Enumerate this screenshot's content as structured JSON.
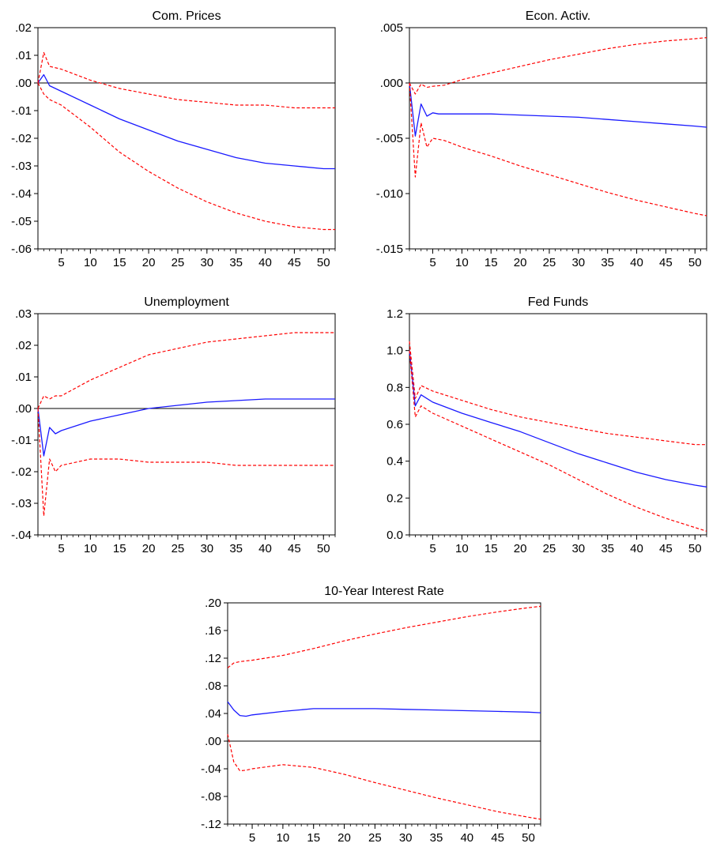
{
  "colors": {
    "estimate": "#1a1aff",
    "band": "#ff0000",
    "zero_line": "#000000",
    "frame": "#000000",
    "background": "#ffffff"
  },
  "legend": "none",
  "grid": false,
  "chart_data": [
    {
      "type": "line",
      "title": "Com. Prices",
      "xlabel": "",
      "ylabel": "",
      "xlim": [
        1,
        52
      ],
      "ylim": [
        -0.06,
        0.02
      ],
      "zero_line": 0,
      "x_ticks": [
        5,
        10,
        15,
        20,
        25,
        30,
        35,
        40,
        45,
        50
      ],
      "y_ticks": [
        {
          "v": 0.02,
          "label": ".02"
        },
        {
          "v": 0.01,
          "label": ".01"
        },
        {
          "v": 0.0,
          "label": ".00"
        },
        {
          "v": -0.01,
          "label": "-.01"
        },
        {
          "v": -0.02,
          "label": "-.02"
        },
        {
          "v": -0.03,
          "label": "-.03"
        },
        {
          "v": -0.04,
          "label": "-.04"
        },
        {
          "v": -0.05,
          "label": "-.05"
        },
        {
          "v": -0.06,
          "label": "-.06"
        }
      ],
      "series": [
        {
          "role": "estimate",
          "x": [
            1,
            2,
            3,
            5,
            10,
            15,
            20,
            25,
            30,
            35,
            40,
            45,
            50,
            52
          ],
          "y": [
            0.0,
            0.003,
            -0.001,
            -0.003,
            -0.008,
            -0.013,
            -0.017,
            -0.021,
            -0.024,
            -0.027,
            -0.029,
            -0.03,
            -0.031,
            -0.031
          ]
        },
        {
          "role": "upper",
          "x": [
            1,
            2,
            3,
            5,
            10,
            15,
            20,
            25,
            30,
            35,
            40,
            45,
            50,
            52
          ],
          "y": [
            0.0,
            0.011,
            0.006,
            0.005,
            0.001,
            -0.002,
            -0.004,
            -0.006,
            -0.007,
            -0.008,
            -0.008,
            -0.009,
            -0.009,
            -0.009
          ]
        },
        {
          "role": "lower",
          "x": [
            1,
            2,
            3,
            5,
            10,
            15,
            20,
            25,
            30,
            35,
            40,
            45,
            50,
            52
          ],
          "y": [
            0.0,
            -0.004,
            -0.006,
            -0.008,
            -0.016,
            -0.025,
            -0.032,
            -0.038,
            -0.043,
            -0.047,
            -0.05,
            -0.052,
            -0.053,
            -0.053
          ]
        }
      ]
    },
    {
      "type": "line",
      "title": "Econ. Activ.",
      "xlabel": "",
      "ylabel": "",
      "xlim": [
        1,
        52
      ],
      "ylim": [
        -0.015,
        0.005
      ],
      "zero_line": 0,
      "x_ticks": [
        5,
        10,
        15,
        20,
        25,
        30,
        35,
        40,
        45,
        50
      ],
      "y_ticks": [
        {
          "v": 0.005,
          "label": ".005"
        },
        {
          "v": 0.0,
          "label": ".000"
        },
        {
          "v": -0.005,
          "label": "-.005"
        },
        {
          "v": -0.01,
          "label": "-.010"
        },
        {
          "v": -0.015,
          "label": "-.015"
        }
      ],
      "series": [
        {
          "role": "estimate",
          "x": [
            1,
            2,
            3,
            4,
            5,
            6,
            10,
            15,
            20,
            25,
            30,
            35,
            40,
            45,
            50,
            52
          ],
          "y": [
            0.0,
            -0.0048,
            -0.0019,
            -0.003,
            -0.0027,
            -0.0028,
            -0.0028,
            -0.0028,
            -0.0029,
            -0.003,
            -0.0031,
            -0.0033,
            -0.0035,
            -0.0037,
            -0.0039,
            -0.004
          ]
        },
        {
          "role": "upper",
          "x": [
            1,
            2,
            3,
            4,
            5,
            7,
            10,
            15,
            20,
            25,
            30,
            35,
            40,
            45,
            50,
            52
          ],
          "y": [
            0.0,
            -0.001,
            -0.0001,
            -0.0004,
            -0.0003,
            -0.0002,
            0.0003,
            0.0009,
            0.0015,
            0.0021,
            0.0026,
            0.0031,
            0.0035,
            0.0038,
            0.004,
            0.0041
          ]
        },
        {
          "role": "lower",
          "x": [
            1,
            2,
            3,
            4,
            5,
            7,
            10,
            15,
            20,
            25,
            30,
            35,
            40,
            45,
            50,
            52
          ],
          "y": [
            0.0,
            -0.0085,
            -0.0036,
            -0.0058,
            -0.005,
            -0.0052,
            -0.0058,
            -0.0066,
            -0.0075,
            -0.0083,
            -0.0091,
            -0.0099,
            -0.0106,
            -0.0112,
            -0.0118,
            -0.012
          ]
        }
      ]
    },
    {
      "type": "line",
      "title": "Unemployment",
      "xlabel": "",
      "ylabel": "",
      "xlim": [
        1,
        52
      ],
      "ylim": [
        -0.04,
        0.03
      ],
      "zero_line": 0,
      "x_ticks": [
        5,
        10,
        15,
        20,
        25,
        30,
        35,
        40,
        45,
        50
      ],
      "y_ticks": [
        {
          "v": 0.03,
          "label": ".03"
        },
        {
          "v": 0.02,
          "label": ".02"
        },
        {
          "v": 0.01,
          "label": ".01"
        },
        {
          "v": 0.0,
          "label": ".00"
        },
        {
          "v": -0.01,
          "label": "-.01"
        },
        {
          "v": -0.02,
          "label": "-.02"
        },
        {
          "v": -0.03,
          "label": "-.03"
        },
        {
          "v": -0.04,
          "label": "-.04"
        }
      ],
      "series": [
        {
          "role": "estimate",
          "x": [
            1,
            2,
            3,
            4,
            5,
            10,
            15,
            20,
            25,
            30,
            35,
            40,
            45,
            50,
            52
          ],
          "y": [
            0.0,
            -0.015,
            -0.006,
            -0.008,
            -0.007,
            -0.004,
            -0.002,
            0.0,
            0.001,
            0.002,
            0.0025,
            0.003,
            0.003,
            0.003,
            0.003
          ]
        },
        {
          "role": "upper",
          "x": [
            1,
            2,
            3,
            4,
            5,
            10,
            15,
            20,
            25,
            30,
            35,
            40,
            45,
            50,
            52
          ],
          "y": [
            0.0,
            0.004,
            0.003,
            0.004,
            0.004,
            0.009,
            0.013,
            0.017,
            0.019,
            0.021,
            0.022,
            0.023,
            0.024,
            0.024,
            0.024
          ]
        },
        {
          "role": "lower",
          "x": [
            1,
            2,
            3,
            4,
            5,
            10,
            15,
            20,
            25,
            30,
            35,
            40,
            45,
            50,
            52
          ],
          "y": [
            0.0,
            -0.034,
            -0.016,
            -0.02,
            -0.018,
            -0.016,
            -0.016,
            -0.017,
            -0.017,
            -0.017,
            -0.018,
            -0.018,
            -0.018,
            -0.018,
            -0.018
          ]
        }
      ]
    },
    {
      "type": "line",
      "title": "Fed Funds",
      "xlabel": "",
      "ylabel": "",
      "xlim": [
        1,
        52
      ],
      "ylim": [
        0.0,
        1.2
      ],
      "zero_line": null,
      "x_ticks": [
        5,
        10,
        15,
        20,
        25,
        30,
        35,
        40,
        45,
        50
      ],
      "y_ticks": [
        {
          "v": 1.2,
          "label": "1.2"
        },
        {
          "v": 1.0,
          "label": "1.0"
        },
        {
          "v": 0.8,
          "label": "0.8"
        },
        {
          "v": 0.6,
          "label": "0.6"
        },
        {
          "v": 0.4,
          "label": "0.4"
        },
        {
          "v": 0.2,
          "label": "0.2"
        },
        {
          "v": 0.0,
          "label": "0.0"
        }
      ],
      "series": [
        {
          "role": "estimate",
          "x": [
            1,
            2,
            3,
            5,
            10,
            15,
            20,
            25,
            30,
            35,
            40,
            45,
            50,
            52
          ],
          "y": [
            1.0,
            0.7,
            0.76,
            0.72,
            0.66,
            0.61,
            0.56,
            0.5,
            0.44,
            0.39,
            0.34,
            0.3,
            0.27,
            0.26
          ]
        },
        {
          "role": "upper",
          "x": [
            1,
            2,
            3,
            5,
            10,
            15,
            20,
            25,
            30,
            35,
            40,
            45,
            50,
            52
          ],
          "y": [
            1.05,
            0.74,
            0.81,
            0.78,
            0.73,
            0.68,
            0.64,
            0.61,
            0.58,
            0.55,
            0.53,
            0.51,
            0.49,
            0.49
          ]
        },
        {
          "role": "lower",
          "x": [
            1,
            2,
            3,
            5,
            10,
            15,
            20,
            25,
            30,
            35,
            40,
            45,
            50,
            52
          ],
          "y": [
            1.0,
            0.64,
            0.7,
            0.66,
            0.59,
            0.52,
            0.45,
            0.38,
            0.3,
            0.22,
            0.15,
            0.09,
            0.04,
            0.02
          ]
        }
      ]
    },
    {
      "type": "line",
      "title": "10-Year Interest Rate",
      "xlabel": "",
      "ylabel": "",
      "xlim": [
        1,
        52
      ],
      "ylim": [
        -0.12,
        0.2
      ],
      "zero_line": 0,
      "x_ticks": [
        5,
        10,
        15,
        20,
        25,
        30,
        35,
        40,
        45,
        50
      ],
      "y_ticks": [
        {
          "v": 0.2,
          "label": ".20"
        },
        {
          "v": 0.16,
          "label": ".16"
        },
        {
          "v": 0.12,
          "label": ".12"
        },
        {
          "v": 0.08,
          "label": ".08"
        },
        {
          "v": 0.04,
          "label": ".04"
        },
        {
          "v": 0.0,
          "label": ".00"
        },
        {
          "v": -0.04,
          "label": "-.04"
        },
        {
          "v": -0.08,
          "label": "-.08"
        },
        {
          "v": -0.12,
          "label": "-.12"
        }
      ],
      "series": [
        {
          "role": "estimate",
          "x": [
            1,
            2,
            3,
            4,
            5,
            10,
            15,
            20,
            25,
            30,
            35,
            40,
            45,
            50,
            52
          ],
          "y": [
            0.057,
            0.045,
            0.037,
            0.036,
            0.038,
            0.043,
            0.047,
            0.047,
            0.047,
            0.046,
            0.045,
            0.044,
            0.043,
            0.042,
            0.041
          ]
        },
        {
          "role": "upper",
          "x": [
            1,
            2,
            3,
            4,
            5,
            10,
            15,
            20,
            25,
            30,
            35,
            40,
            45,
            50,
            52
          ],
          "y": [
            0.106,
            0.113,
            0.115,
            0.116,
            0.117,
            0.124,
            0.134,
            0.145,
            0.155,
            0.164,
            0.172,
            0.18,
            0.187,
            0.193,
            0.195
          ]
        },
        {
          "role": "lower",
          "x": [
            1,
            2,
            3,
            4,
            5,
            10,
            15,
            20,
            25,
            30,
            35,
            40,
            45,
            50,
            52
          ],
          "y": [
            0.01,
            -0.03,
            -0.043,
            -0.042,
            -0.04,
            -0.034,
            -0.038,
            -0.048,
            -0.06,
            -0.071,
            -0.082,
            -0.092,
            -0.102,
            -0.11,
            -0.113
          ]
        }
      ]
    }
  ]
}
